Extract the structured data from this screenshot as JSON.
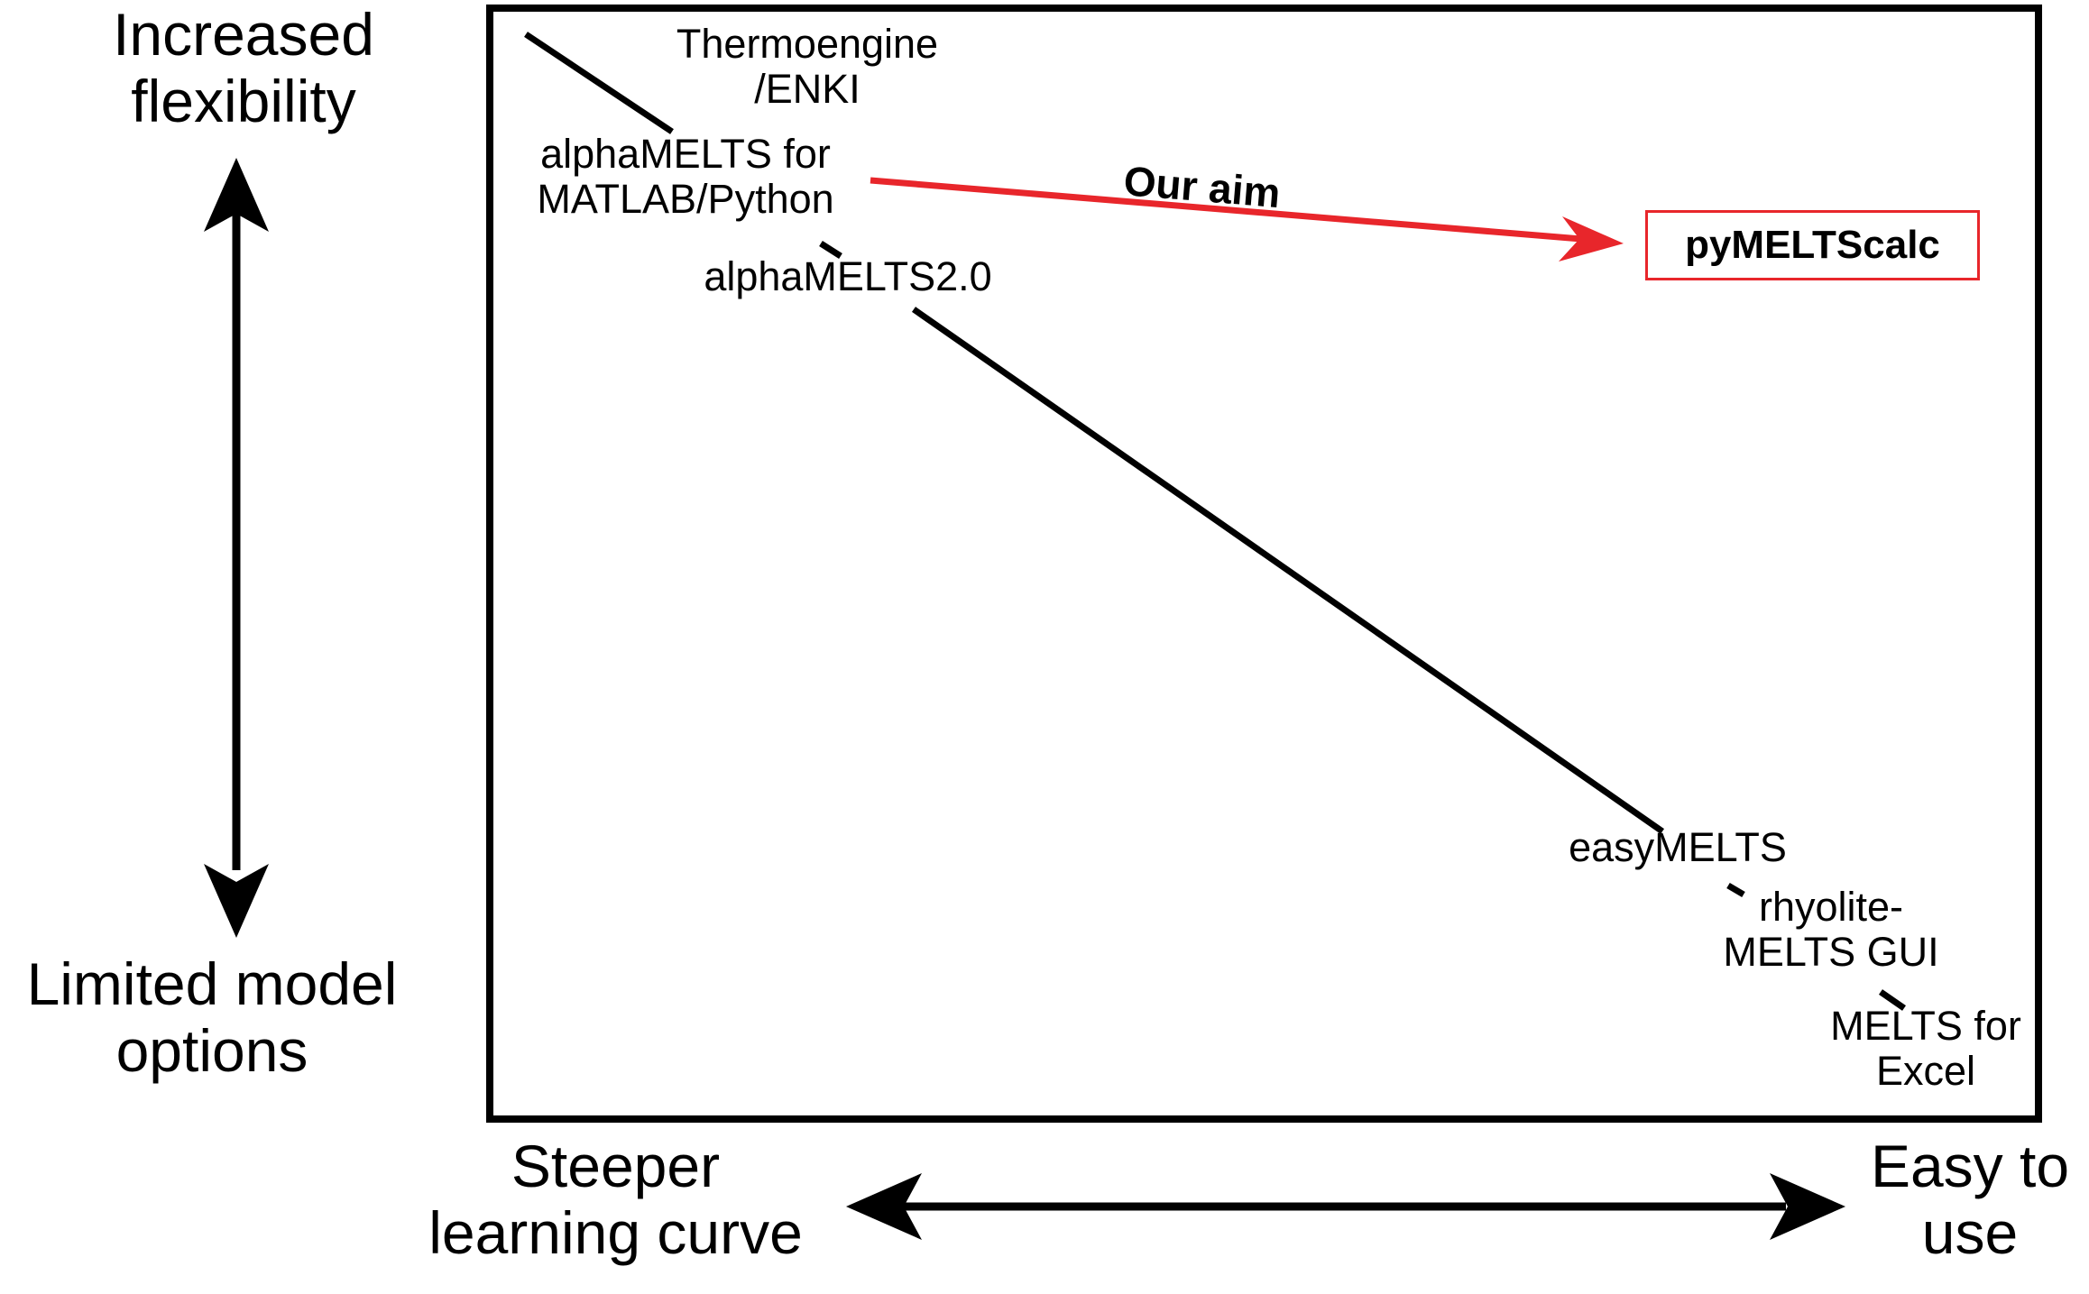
{
  "colors": {
    "line": "#000000",
    "accent": "#e8262b"
  },
  "y_axis": {
    "top_label": [
      "Increased",
      "flexibility"
    ],
    "bottom_label": [
      "Limited model",
      "options"
    ]
  },
  "x_axis": {
    "left_label": [
      "Steeper",
      "learning curve"
    ],
    "right_label": [
      "Easy to",
      "use"
    ]
  },
  "tools": [
    {
      "lines": [
        "Thermoengine",
        "/ENKI"
      ]
    },
    {
      "lines": [
        "alphaMELTS for",
        "MATLAB/Python"
      ]
    },
    {
      "lines": [
        "alphaMELTS2.0"
      ]
    },
    {
      "lines": [
        "easyMELTS"
      ]
    },
    {
      "lines": [
        "rhyolite-",
        "MELTS GUI"
      ]
    },
    {
      "lines": [
        "MELTS for",
        "Excel"
      ]
    }
  ],
  "aim": {
    "label": "Our aim",
    "target": "pyMELTScalc"
  }
}
